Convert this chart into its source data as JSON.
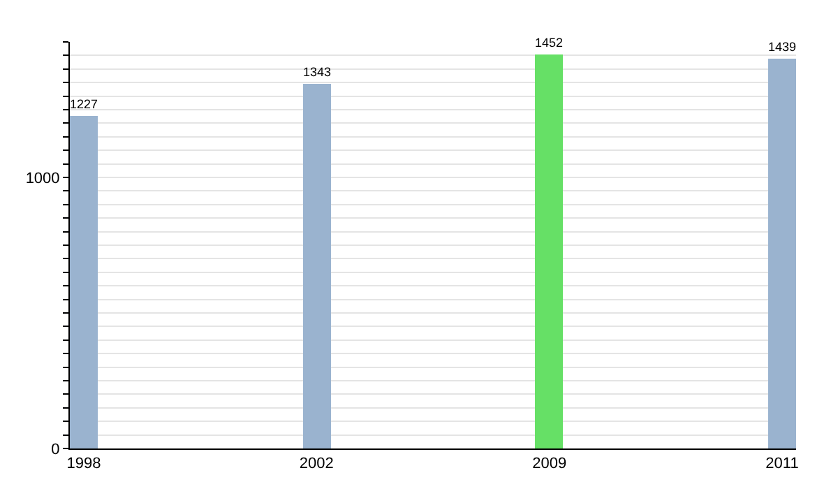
{
  "chart_data": {
    "type": "bar",
    "categories": [
      "1998",
      "2002",
      "2009",
      "2011"
    ],
    "values": [
      1227,
      1343,
      1452,
      1439
    ],
    "colors": [
      "#9ab3cf",
      "#9ab3cf",
      "#66e066",
      "#9ab3cf"
    ],
    "ylim": [
      0,
      1500
    ],
    "yticks": [
      0,
      {
        "value": 50,
        "label": null
      },
      {
        "value": 100,
        "label": null
      },
      {
        "value": 150,
        "label": null
      },
      {
        "value": 200,
        "label": null
      },
      {
        "value": 250,
        "label": null
      },
      {
        "value": 300,
        "label": null
      },
      {
        "value": 350,
        "label": null
      },
      {
        "value": 400,
        "label": null
      },
      {
        "value": 450,
        "label": null
      },
      {
        "value": 500,
        "label": null
      },
      {
        "value": 550,
        "label": null
      },
      {
        "value": 600,
        "label": null
      },
      {
        "value": 650,
        "label": null
      },
      {
        "value": 700,
        "label": null
      },
      {
        "value": 750,
        "label": null
      },
      {
        "value": 800,
        "label": null
      },
      {
        "value": 850,
        "label": null
      },
      {
        "value": 900,
        "label": null
      },
      {
        "value": 950,
        "label": null
      },
      1000,
      {
        "value": 1050,
        "label": null
      },
      {
        "value": 1100,
        "label": null
      },
      {
        "value": 1150,
        "label": null
      },
      {
        "value": 1200,
        "label": null
      },
      {
        "value": 1250,
        "label": null
      },
      {
        "value": 1300,
        "label": null
      },
      {
        "value": 1350,
        "label": null
      },
      {
        "value": 1400,
        "label": null
      },
      {
        "value": 1450,
        "label": null
      },
      {
        "value": 1500,
        "label": null
      }
    ],
    "grid": "y",
    "data_labels": true,
    "legend": false
  }
}
